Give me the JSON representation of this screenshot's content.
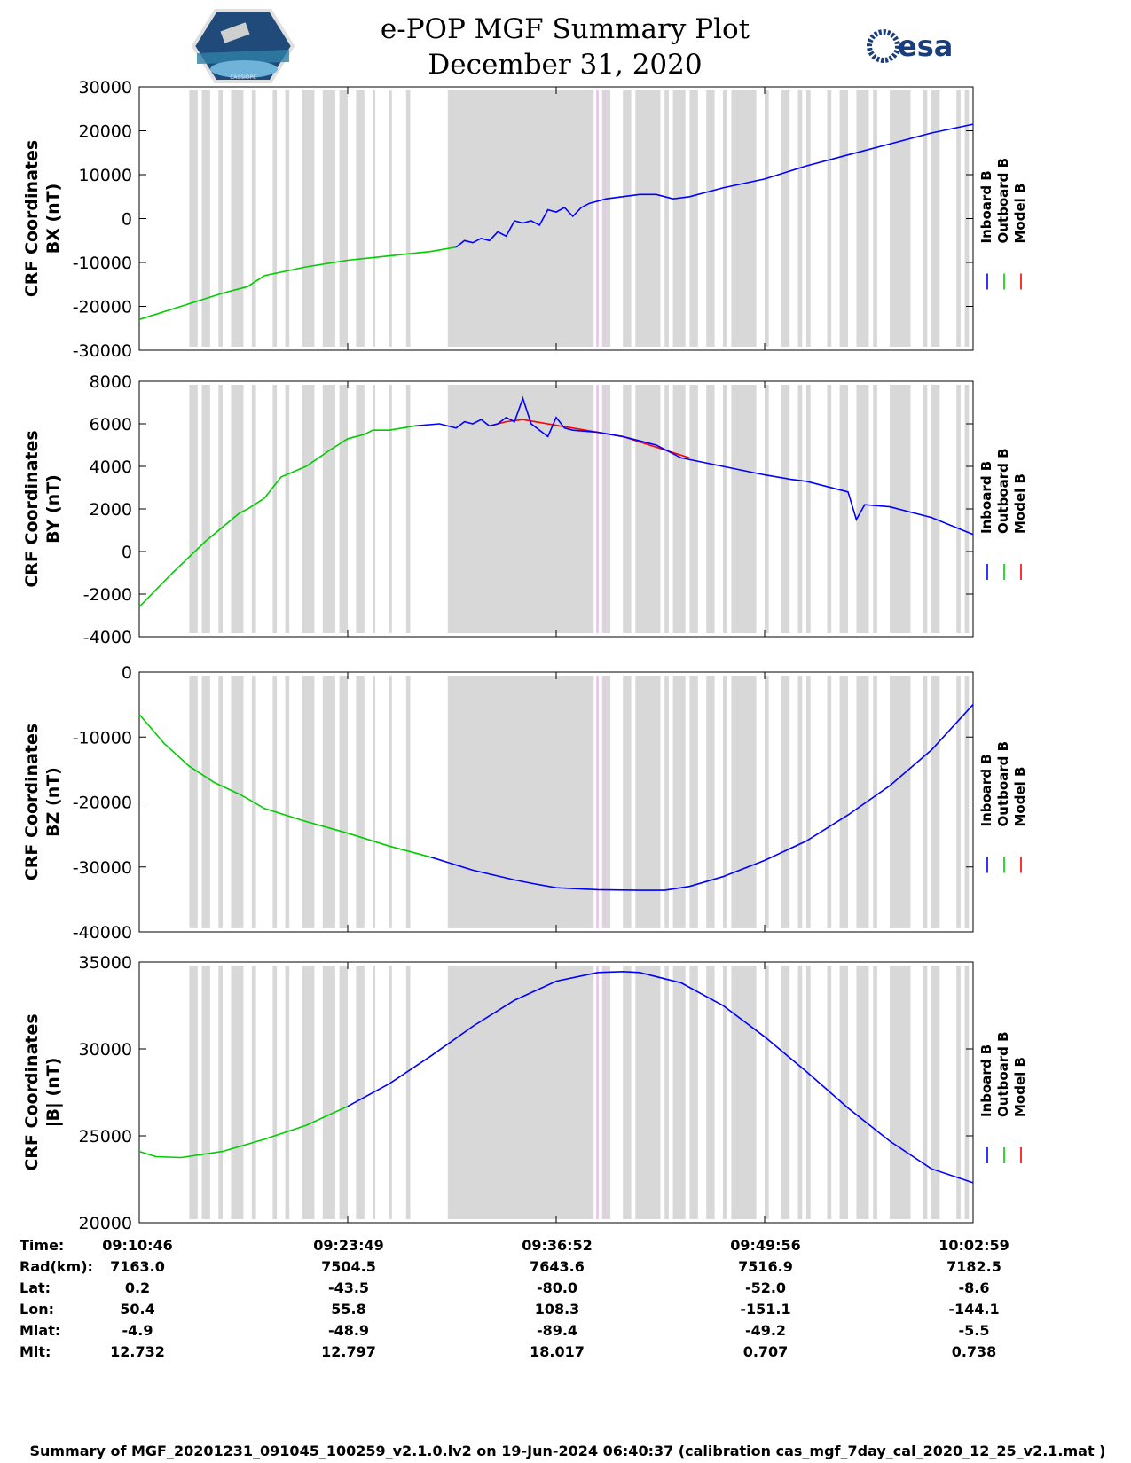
{
  "title": "e-POP MGF Summary Plot",
  "subtitle": "December 31, 2020",
  "logos": {
    "left_text": "CASSIOPE",
    "right_text": "esa"
  },
  "legend": {
    "labels": [
      "Inboard B",
      "Outboard B",
      "Model B"
    ],
    "colors": [
      "#0000ff",
      "#00cc00",
      "#ff0000"
    ]
  },
  "gray_bands": [
    [
      0.06,
      0.07
    ],
    [
      0.075,
      0.085
    ],
    [
      0.095,
      0.1
    ],
    [
      0.11,
      0.125
    ],
    [
      0.135,
      0.14
    ],
    [
      0.16,
      0.165
    ],
    [
      0.175,
      0.18
    ],
    [
      0.195,
      0.21
    ],
    [
      0.22,
      0.235
    ],
    [
      0.24,
      0.25
    ],
    [
      0.26,
      0.27
    ],
    [
      0.28,
      0.283
    ],
    [
      0.3,
      0.303
    ],
    [
      0.32,
      0.325
    ],
    [
      0.37,
      0.545
    ],
    [
      0.555,
      0.565
    ],
    [
      0.58,
      0.59
    ],
    [
      0.595,
      0.625
    ],
    [
      0.63,
      0.635
    ],
    [
      0.64,
      0.655
    ],
    [
      0.66,
      0.67
    ],
    [
      0.68,
      0.69
    ],
    [
      0.7,
      0.705
    ],
    [
      0.71,
      0.74
    ],
    [
      0.75,
      0.755
    ],
    [
      0.77,
      0.78
    ],
    [
      0.79,
      0.795
    ],
    [
      0.8,
      0.805
    ],
    [
      0.825,
      0.83
    ],
    [
      0.84,
      0.85
    ],
    [
      0.86,
      0.875
    ],
    [
      0.88,
      0.885
    ],
    [
      0.9,
      0.925
    ],
    [
      0.94,
      0.945
    ],
    [
      0.95,
      0.96
    ],
    [
      0.98,
      0.985
    ],
    [
      0.99,
      0.995
    ]
  ],
  "magenta_bands": [
    [
      0.548,
      0.551
    ],
    [
      0.557,
      0.559
    ]
  ],
  "chart_data": [
    {
      "type": "line",
      "name": "BX",
      "ylabel_line1": "CRF Coordinates",
      "ylabel_line2": "BX (nT)",
      "ylim": [
        -30000,
        30000
      ],
      "yticks": [
        30000,
        20000,
        10000,
        0,
        -10000,
        -20000,
        -30000
      ],
      "series": [
        {
          "name": "Outboard B",
          "color": "#00cc00",
          "x": [
            0,
            0.05,
            0.1,
            0.13,
            0.15,
            0.2,
            0.25,
            0.3,
            0.35,
            0.38
          ],
          "y": [
            -23000,
            -20000,
            -17000,
            -15500,
            -13000,
            -11000,
            -9500,
            -8500,
            -7500,
            -6500
          ]
        },
        {
          "name": "Inboard B",
          "color": "#0000ff",
          "x": [
            0.38,
            0.39,
            0.4,
            0.41,
            0.42,
            0.43,
            0.44,
            0.45,
            0.46,
            0.47,
            0.48,
            0.49,
            0.5,
            0.51,
            0.52,
            0.53,
            0.54,
            0.56,
            0.6,
            0.62,
            0.64,
            0.66,
            0.7,
            0.75,
            0.8,
            0.85,
            0.9,
            0.95,
            1.0
          ],
          "y": [
            -6500,
            -5000,
            -5500,
            -4500,
            -5000,
            -3000,
            -4000,
            -500,
            -1000,
            -500,
            -1500,
            2000,
            1500,
            2500,
            500,
            2500,
            3500,
            4500,
            5500,
            5500,
            4500,
            5000,
            7000,
            9000,
            12000,
            14500,
            17000,
            19500,
            21500
          ]
        }
      ]
    },
    {
      "type": "line",
      "name": "BY",
      "ylabel_line1": "CRF Coordinates",
      "ylabel_line2": "BY (nT)",
      "ylim": [
        -4000,
        8000
      ],
      "yticks": [
        8000,
        6000,
        4000,
        2000,
        0,
        -2000,
        -4000
      ],
      "series": [
        {
          "name": "Outboard B",
          "color": "#00cc00",
          "x": [
            0,
            0.04,
            0.08,
            0.12,
            0.13,
            0.15,
            0.17,
            0.2,
            0.23,
            0.25,
            0.27,
            0.28,
            0.3,
            0.33
          ],
          "y": [
            -2600,
            -1000,
            500,
            1800,
            2000,
            2500,
            3500,
            4000,
            4800,
            5300,
            5500,
            5700,
            5700,
            5900
          ]
        },
        {
          "name": "Model B",
          "color": "#ff0000",
          "x": [
            0.42,
            0.44,
            0.46,
            0.55,
            0.58,
            0.62,
            0.66
          ],
          "y": [
            5900,
            6100,
            6200,
            5600,
            5400,
            4900,
            4400
          ]
        },
        {
          "name": "Inboard B",
          "color": "#0000ff",
          "x": [
            0.33,
            0.36,
            0.38,
            0.39,
            0.4,
            0.41,
            0.42,
            0.43,
            0.44,
            0.45,
            0.46,
            0.47,
            0.49,
            0.5,
            0.51,
            0.52,
            0.55,
            0.58,
            0.6,
            0.62,
            0.65,
            0.7,
            0.75,
            0.78,
            0.8,
            0.85,
            0.86,
            0.87,
            0.9,
            0.95,
            1.0
          ],
          "y": [
            5900,
            6000,
            5800,
            6100,
            6000,
            6200,
            5900,
            6000,
            6300,
            6100,
            7200,
            6000,
            5400,
            6300,
            5800,
            5700,
            5600,
            5400,
            5200,
            5000,
            4400,
            4000,
            3600,
            3400,
            3300,
            2800,
            1500,
            2200,
            2100,
            1600,
            800
          ]
        }
      ]
    },
    {
      "type": "line",
      "name": "BZ",
      "ylabel_line1": "CRF Coordinates",
      "ylabel_line2": "BZ (nT)",
      "ylim": [
        -40000,
        0
      ],
      "yticks": [
        0,
        -10000,
        -20000,
        -30000,
        -40000
      ],
      "series": [
        {
          "name": "Outboard B",
          "color": "#00cc00",
          "x": [
            0,
            0.03,
            0.06,
            0.09,
            0.12,
            0.13,
            0.15,
            0.2,
            0.25,
            0.3,
            0.35
          ],
          "y": [
            -6500,
            -11000,
            -14500,
            -17000,
            -18800,
            -19500,
            -21000,
            -23000,
            -24800,
            -26800,
            -28500
          ]
        },
        {
          "name": "Inboard B",
          "color": "#0000ff",
          "x": [
            0.35,
            0.4,
            0.45,
            0.47,
            0.5,
            0.55,
            0.6,
            0.63,
            0.66,
            0.7,
            0.75,
            0.8,
            0.85,
            0.9,
            0.95,
            1.0
          ],
          "y": [
            -28500,
            -30500,
            -32000,
            -32500,
            -33200,
            -33500,
            -33600,
            -33600,
            -33000,
            -31500,
            -29000,
            -26000,
            -22000,
            -17500,
            -12000,
            -5000
          ]
        }
      ]
    },
    {
      "type": "line",
      "name": "|B|",
      "ylabel_line1": "CRF Coordinates",
      "ylabel_line2": "|B| (nT)",
      "ylim": [
        20000,
        35000
      ],
      "yticks": [
        35000,
        30000,
        25000,
        20000
      ],
      "series": [
        {
          "name": "Outboard B",
          "color": "#00cc00",
          "x": [
            0,
            0.02,
            0.05,
            0.1,
            0.15,
            0.2,
            0.25
          ],
          "y": [
            24100,
            23800,
            23750,
            24100,
            24800,
            25600,
            26700
          ]
        },
        {
          "name": "Inboard B",
          "color": "#0000ff",
          "x": [
            0.25,
            0.3,
            0.35,
            0.4,
            0.45,
            0.5,
            0.55,
            0.58,
            0.6,
            0.65,
            0.7,
            0.75,
            0.8,
            0.85,
            0.9,
            0.95,
            1.0
          ],
          "y": [
            26700,
            28000,
            29600,
            31300,
            32800,
            33900,
            34400,
            34450,
            34400,
            33800,
            32500,
            30700,
            28700,
            26600,
            24700,
            23100,
            22300
          ]
        }
      ]
    }
  ],
  "table": {
    "row_labels": [
      "Time:",
      "Rad(km):",
      "Lat:",
      "Lon:",
      "Mlat:",
      "Mlt:"
    ],
    "columns": [
      [
        "09:10:46",
        "7163.0",
        "0.2",
        "50.4",
        "-4.9",
        "12.732"
      ],
      [
        "09:23:49",
        "7504.5",
        "-43.5",
        "55.8",
        "-48.9",
        "12.797"
      ],
      [
        "09:36:52",
        "7643.6",
        "-80.0",
        "108.3",
        "-89.4",
        "18.017"
      ],
      [
        "09:49:56",
        "7516.9",
        "-52.0",
        "-151.1",
        "-49.2",
        "0.707"
      ],
      [
        "10:02:59",
        "7182.5",
        "-8.6",
        "-144.1",
        "-5.5",
        "0.738"
      ]
    ]
  },
  "footer": "Summary of MGF_20201231_091045_100259_v2.1.0.lv2 on 19-Jun-2024 06:40:37 (calibration cas_mgf_7day_cal_2020_12_25_v2.1.mat )"
}
